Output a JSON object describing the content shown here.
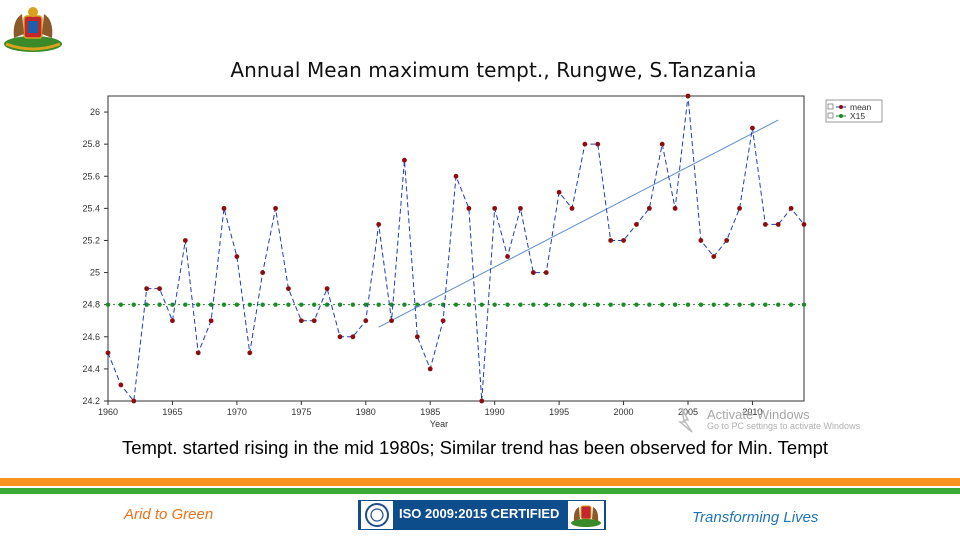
{
  "title": "Annual Mean maximum tempt., Rungwe, S.Tanzania",
  "caption": "Tempt. started rising in the mid 1980s; Similar trend has been observed for Min. Tempt",
  "footer": {
    "left": "Arid to Green",
    "center": "ISO 2009:2015 CERTIFIED",
    "right": "Transforming Lives"
  },
  "watermark": {
    "line1": "Activate Windows",
    "line2": "Go to PC settings to activate Windows"
  },
  "colors": {
    "mean_line": "#1f3bbf",
    "mean_marker": "#8b0d0d",
    "x15_marker": "#1e8a2a",
    "trend": "#5b8fd1",
    "orange": "#f7941d",
    "green": "#3aa935"
  },
  "icons": [
    "emblem-icon",
    "iso-logo-icon",
    "crest-icon",
    "windows-activation-icon"
  ],
  "chart_data": {
    "type": "line",
    "xlabel": "Year",
    "ylabel": "",
    "xlim": [
      1960,
      2014
    ],
    "ylim": [
      24.2,
      26.1
    ],
    "xticks": [
      "1960",
      "1965",
      "1970",
      "1975",
      "1980",
      "1985",
      "1990",
      "1995",
      "2000",
      "2005",
      "2010"
    ],
    "yticks": [
      "24.2",
      "24.4",
      "24.6",
      "24.8",
      "25",
      "25.2",
      "25.4",
      "25.6",
      "25.8",
      "26"
    ],
    "legend": {
      "placement": "top-right-outside",
      "entries": [
        "mean",
        "X15"
      ]
    },
    "x": [
      1960,
      1961,
      1962,
      1963,
      1964,
      1965,
      1966,
      1967,
      1968,
      1969,
      1970,
      1971,
      1972,
      1973,
      1974,
      1975,
      1976,
      1977,
      1978,
      1979,
      1980,
      1981,
      1982,
      1983,
      1984,
      1985,
      1986,
      1987,
      1988,
      1989,
      1990,
      1991,
      1992,
      1993,
      1994,
      1995,
      1996,
      1997,
      1998,
      1999,
      2000,
      2001,
      2002,
      2003,
      2004,
      2005,
      2006,
      2007,
      2008,
      2009,
      2010,
      2011,
      2012,
      2013,
      2014
    ],
    "series": [
      {
        "name": "mean",
        "values": [
          24.5,
          24.3,
          24.2,
          24.9,
          24.9,
          24.7,
          25.2,
          24.5,
          24.7,
          25.4,
          25.1,
          24.5,
          25.0,
          25.4,
          24.9,
          24.7,
          24.7,
          24.9,
          24.6,
          24.6,
          24.7,
          25.3,
          24.7,
          25.7,
          24.6,
          24.4,
          24.7,
          25.6,
          25.4,
          24.2,
          25.4,
          25.1,
          25.4,
          25.0,
          25.0,
          25.5,
          25.4,
          25.8,
          25.8,
          25.2,
          25.2,
          25.3,
          25.4,
          25.8,
          25.4,
          26.1,
          25.2,
          25.1,
          25.2,
          25.4,
          25.9,
          25.3,
          25.3,
          25.4,
          25.3
        ]
      },
      {
        "name": "X15",
        "values": [
          24.8,
          24.8,
          24.8,
          24.8,
          24.8,
          24.8,
          24.8,
          24.8,
          24.8,
          24.8,
          24.8,
          24.8,
          24.8,
          24.8,
          24.8,
          24.8,
          24.8,
          24.8,
          24.8,
          24.8,
          24.8,
          24.8,
          24.8,
          24.8,
          24.8,
          24.8,
          24.8,
          24.8,
          24.8,
          24.8,
          24.8,
          24.8,
          24.8,
          24.8,
          24.8,
          24.8,
          24.8,
          24.8,
          24.8,
          24.8,
          24.8,
          24.8,
          24.8,
          24.8,
          24.8,
          24.8,
          24.8,
          24.8,
          24.8,
          24.8,
          24.8,
          24.8,
          24.8,
          24.8,
          24.8
        ]
      }
    ],
    "trendline": {
      "x": [
        1981,
        2012
      ],
      "y": [
        24.66,
        25.95
      ]
    }
  }
}
